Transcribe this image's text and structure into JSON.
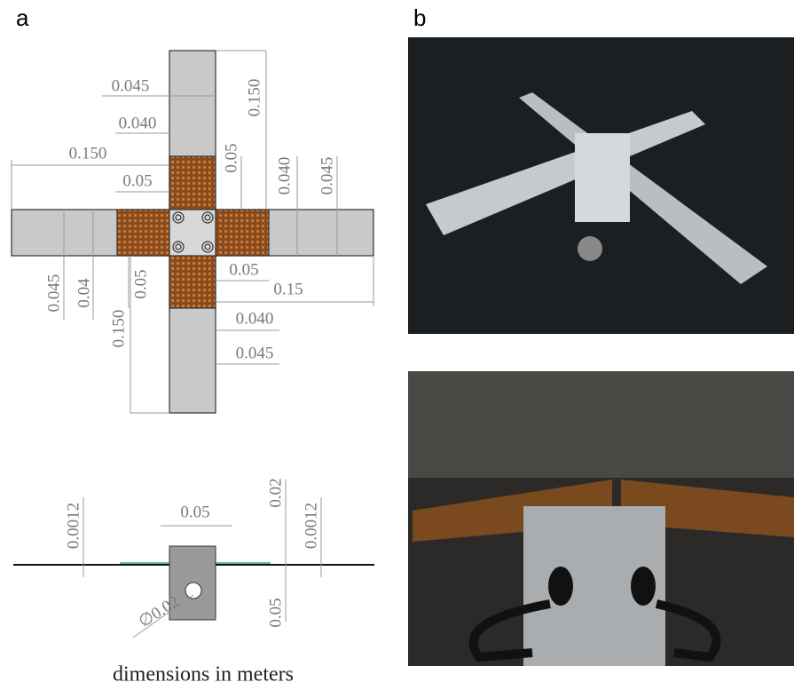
{
  "panel_a": {
    "label": "a",
    "top_view": {
      "dimensions": [
        "0.045",
        "0.040",
        "0.150",
        "0.05",
        "0.150",
        "0.05",
        "0.040",
        "0.045",
        "0.045",
        "0.04",
        "0.05",
        "0.150",
        "0.05",
        "0.15",
        "0.040",
        "0.045"
      ]
    },
    "side_view": {
      "dimensions": [
        "0.0012",
        "0.05",
        "0.02",
        "0.0012",
        "0.05",
        "∅0.02"
      ]
    },
    "caption": "dimensions in meters"
  },
  "panel_b": {
    "label": "b"
  }
}
